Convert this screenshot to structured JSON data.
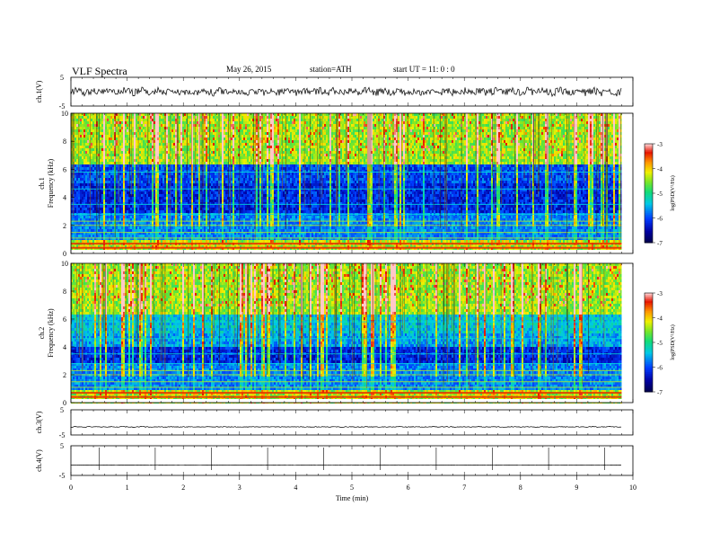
{
  "header": {
    "title": "VLF  Spectra",
    "date": "May 26, 2015",
    "station": "station=ATH",
    "start": "start  UT  =    11: 0  : 0"
  },
  "chart_data": [
    {
      "type": "line",
      "panel": "ch1-waveform",
      "ylabel": "ch.1(V)",
      "yticks": [
        "5",
        "-5"
      ],
      "ylim": [
        -5,
        5
      ],
      "xlim": [
        0,
        10
      ],
      "description_series": "noisy waveform, approx ±1.2 V"
    },
    {
      "type": "heatmap",
      "panel": "ch1-spectrogram",
      "ylabel": "Frequency  (kHz)",
      "channel_label": "ch.1",
      "yticks": [
        "0",
        "2",
        "4",
        "6",
        "8",
        "10"
      ],
      "ylim": [
        0,
        10
      ],
      "xlim": [
        0,
        9.8
      ],
      "colorbar": {
        "label": "log(PSD(V²/Hz)",
        "ticks": [
          "-3",
          "-4",
          "-5",
          "-6",
          "-7"
        ],
        "range": [
          -7,
          -3
        ]
      }
    },
    {
      "type": "heatmap",
      "panel": "ch2-spectrogram",
      "ylabel": "Frequency  (kHz)",
      "channel_label": "ch.2",
      "yticks": [
        "0",
        "2",
        "4",
        "6",
        "8",
        "10"
      ],
      "ylim": [
        0,
        10
      ],
      "xlim": [
        0,
        9.8
      ],
      "colorbar": {
        "label": "log(PSD(V²/Hz)",
        "ticks": [
          "-3",
          "-4",
          "-5",
          "-6",
          "-7"
        ],
        "range": [
          -7,
          -3
        ]
      }
    },
    {
      "type": "line",
      "panel": "ch3-waveform",
      "ylabel": "ch.3(V)",
      "yticks": [
        "5",
        "-5"
      ],
      "ylim": [
        -5,
        5
      ],
      "xlim": [
        0,
        10
      ]
    },
    {
      "type": "line",
      "panel": "ch4-waveform",
      "ylabel": "ch.4(V)",
      "yticks": [
        "5",
        "-5"
      ],
      "ylim": [
        -5,
        5
      ],
      "xlim": [
        0,
        10
      ]
    }
  ],
  "xaxis": {
    "label": "Time  (min)",
    "ticks": [
      "0",
      "1",
      "2",
      "3",
      "4",
      "5",
      "6",
      "7",
      "8",
      "9",
      "10"
    ]
  }
}
